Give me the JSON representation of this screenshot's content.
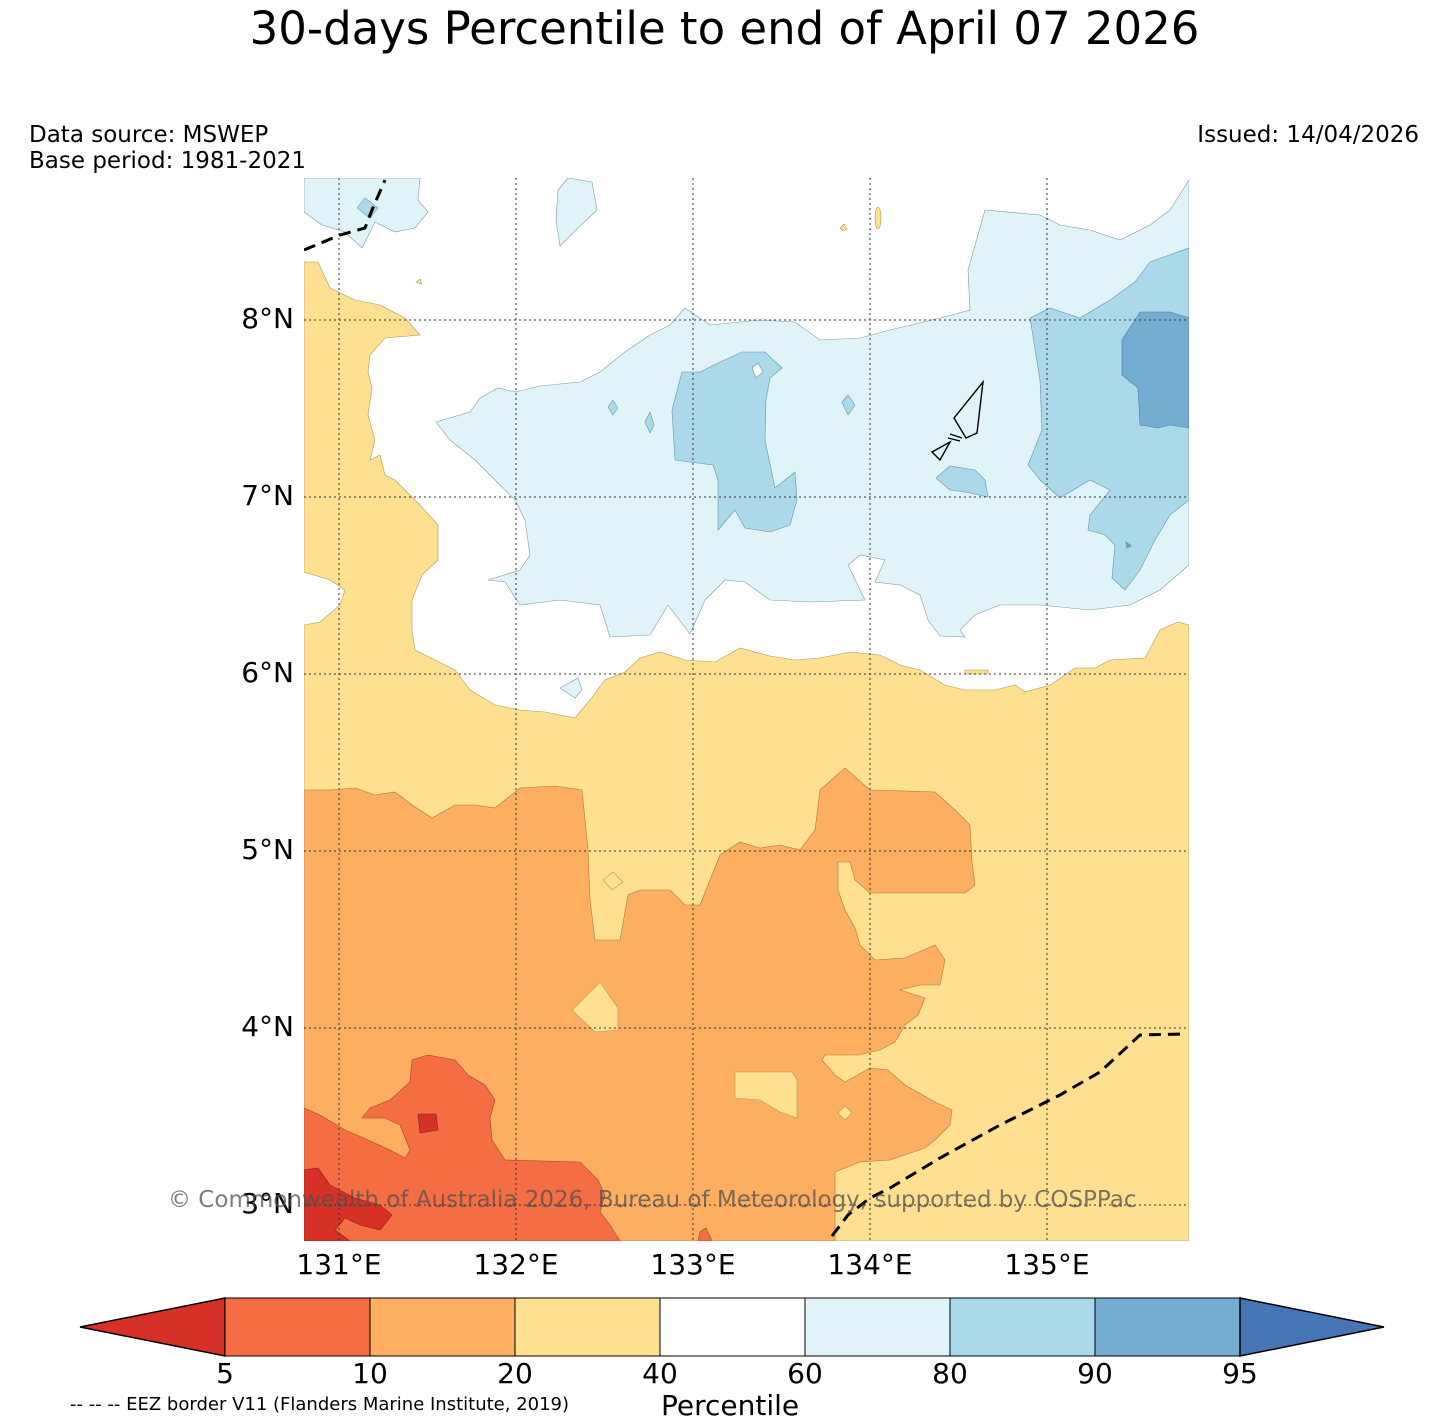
{
  "title": "30-days Percentile to end of April 07 2026",
  "data_source": "Data source: MSWEP",
  "base_period": "Base period: 1981-2021",
  "issued": "Issued: 14/04/2026",
  "copyright": "© Commonwealth of Australia 2026, Bureau of Meteorology, supported by COSPPac",
  "eez_note": "-- -- -- EEZ border V11 (Flanders Marine Institute, 2019)",
  "colorbar": {
    "label": "Percentile",
    "ticks": [
      "5",
      "10",
      "20",
      "40",
      "60",
      "80",
      "90",
      "95"
    ],
    "colors": [
      "#d73027",
      "#f46d43",
      "#fdae61",
      "#fee090",
      "#ffffff",
      "#e0f3f8",
      "#abd9e9",
      "#74add1",
      "#4575b4"
    ]
  },
  "map": {
    "lat_labels": [
      "8°N",
      "7°N",
      "6°N",
      "5°N",
      "4°N",
      "3°N"
    ],
    "lon_labels": [
      "131°E",
      "132°E",
      "133°E",
      "134°E",
      "135°E"
    ],
    "extent": {
      "lon_min": 130.8,
      "lon_max": 135.8,
      "lat_min": 2.8,
      "lat_max": 8.8
    }
  }
}
